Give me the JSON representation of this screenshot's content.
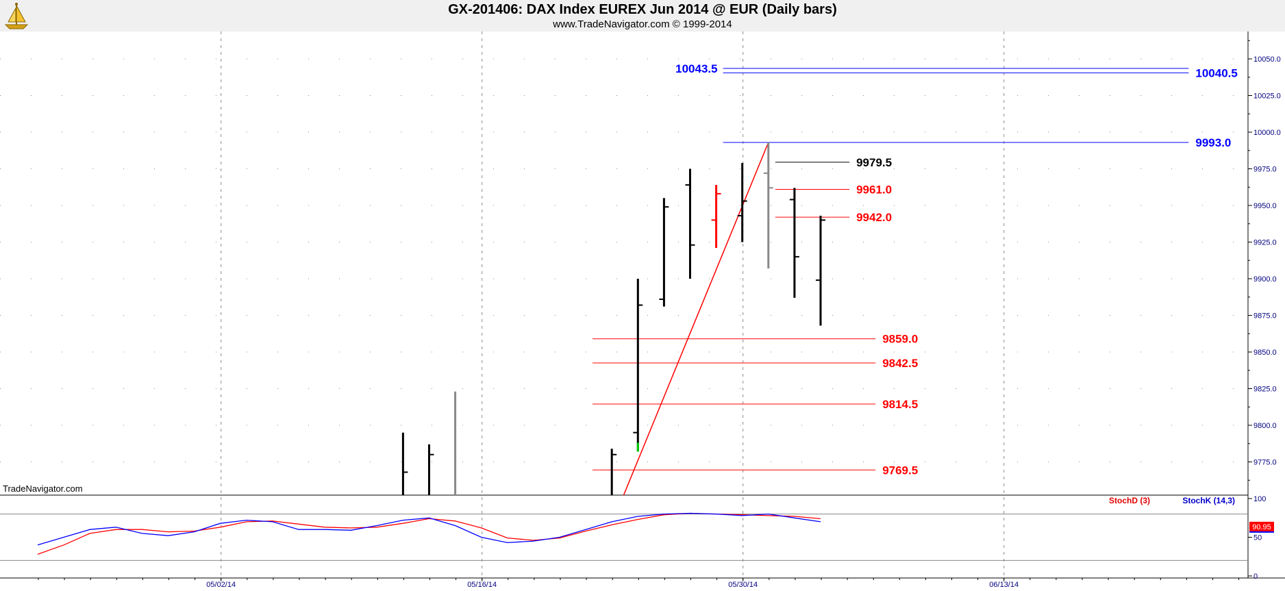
{
  "header": {
    "title": "GX-201406:  DAX Index EUREX Jun 2014 @ EUR  (Daily bars)",
    "subtitle": "www.TradeNavigator.com © 1999-2014"
  },
  "watermark": "TradeNavigator.com",
  "logo_icon": "ship-sextant-logo-icon",
  "colors": {
    "bar_normal": "#000000",
    "bar_gray": "#888888",
    "bar_red": "#ff0000",
    "bar_green": "#00cc00",
    "level_blue": "#0000ff",
    "level_red": "#ff0000",
    "level_black": "#000000",
    "stoch_d": "#ff0000",
    "stoch_k": "#0000ff",
    "axis_text_blue": "#000080",
    "grid": "#888888",
    "header_bg": "#f0f0f0"
  },
  "chart_data": {
    "type": "ohlc",
    "price_axis": {
      "ylim": [
        9750,
        10060
      ],
      "ticks": [
        "10050.0",
        "10025.0",
        "10000.0",
        "9975.0",
        "9950.0",
        "9925.0",
        "9900.0",
        "9875.0",
        "9850.0",
        "9825.0",
        "9800.0",
        "9775.0"
      ],
      "tick_values": [
        10050,
        10025,
        10000,
        9975,
        9950,
        9925,
        9900,
        9875,
        9850,
        9825,
        9800,
        9775
      ]
    },
    "date_axis": {
      "labels": [
        "05/02/14",
        "05/16/14",
        "05/30/14",
        "06/13/14"
      ],
      "label_bar_index": [
        7,
        17,
        27,
        37
      ],
      "bar_count_visible": 47
    },
    "bars": [
      {
        "i": 14,
        "high": 9795,
        "low": 9750,
        "open": 9750,
        "close": 9768,
        "color": "bar_normal"
      },
      {
        "i": 15,
        "high": 9787,
        "low": 9750,
        "open": 9750,
        "close": 9780,
        "color": "bar_normal"
      },
      {
        "i": 16,
        "high": 9823,
        "low": 9750,
        "open": 9750,
        "close": 9750,
        "color": "bar_gray"
      },
      {
        "i": 22,
        "high": 9784,
        "low": 9750,
        "open": 9750,
        "close": 9780,
        "color": "bar_normal"
      },
      {
        "i": 23,
        "high": 9900,
        "low": 9782,
        "open": 9795,
        "close": 9882,
        "color": "bar_normal",
        "green_mark": [
          9782,
          9788
        ]
      },
      {
        "i": 24,
        "high": 9955,
        "low": 9881,
        "open": 9886,
        "close": 9949,
        "color": "bar_normal"
      },
      {
        "i": 25,
        "high": 9975,
        "low": 9900,
        "open": 9964,
        "close": 9923,
        "color": "bar_normal"
      },
      {
        "i": 26,
        "high": 9964,
        "low": 9921,
        "open": 9940,
        "close": 9958,
        "color": "bar_red"
      },
      {
        "i": 27,
        "high": 9979,
        "low": 9925,
        "open": 9943,
        "close": 9953,
        "color": "bar_normal"
      },
      {
        "i": 28,
        "high": 9993,
        "low": 9907,
        "open": 9972,
        "close": 9962,
        "color": "bar_gray"
      },
      {
        "i": 29,
        "high": 9962,
        "low": 9887,
        "open": 9954,
        "close": 9915,
        "color": "bar_normal"
      },
      {
        "i": 30,
        "high": 9943,
        "low": 9868,
        "open": 9899,
        "close": 9940,
        "color": "bar_normal"
      }
    ],
    "trendline": {
      "from": {
        "i": 22.4,
        "price": 9750
      },
      "to": {
        "i": 28,
        "price": 9993
      },
      "color": "bar_red"
    },
    "levels": [
      {
        "value": 10043.5,
        "label": "10043.5",
        "from_i": 26,
        "to_i": 44,
        "color": "level_blue",
        "label_side": "left"
      },
      {
        "value": 10040.5,
        "label": "10040.5",
        "from_i": 26,
        "to_i": 44,
        "color": "level_blue",
        "label_side": "right"
      },
      {
        "value": 9993.0,
        "label": "9993.0",
        "from_i": 26,
        "to_i": 44,
        "color": "level_blue",
        "label_side": "right"
      },
      {
        "value": 9979.5,
        "label": "9979.5",
        "from_i": 28,
        "to_i": 31,
        "color": "level_black",
        "label_side": "right"
      },
      {
        "value": 9961.0,
        "label": "9961.0",
        "from_i": 28,
        "to_i": 31,
        "color": "level_red",
        "label_side": "right"
      },
      {
        "value": 9942.0,
        "label": "9942.0",
        "from_i": 28,
        "to_i": 31,
        "color": "level_red",
        "label_side": "right"
      },
      {
        "value": 9859.0,
        "label": "9859.0",
        "from_i": 21,
        "to_i": 32,
        "color": "level_red",
        "label_side": "right"
      },
      {
        "value": 9842.5,
        "label": "9842.5",
        "from_i": 21,
        "to_i": 32,
        "color": "level_red",
        "label_side": "right"
      },
      {
        "value": 9814.5,
        "label": "9814.5",
        "from_i": 21,
        "to_i": 32,
        "color": "level_red",
        "label_side": "right"
      },
      {
        "value": 9769.5,
        "label": "9769.5",
        "from_i": 21,
        "to_i": 32,
        "color": "level_red",
        "label_side": "right"
      }
    ],
    "stochastic": {
      "legend": {
        "d": "StochD (3)",
        "k": "StochK (14,3)"
      },
      "ylim": [
        0,
        100
      ],
      "ticks": [
        "100",
        "50",
        "0"
      ],
      "tick_values": [
        100,
        50,
        0
      ],
      "ref_lines": [
        80,
        20
      ],
      "last_value_label": "90.95",
      "k_values": [
        [
          0,
          40
        ],
        [
          2,
          60
        ],
        [
          3,
          63
        ],
        [
          4,
          55
        ],
        [
          5,
          52
        ],
        [
          6,
          57
        ],
        [
          7,
          68
        ],
        [
          8,
          72
        ],
        [
          9,
          70
        ],
        [
          10,
          60
        ],
        [
          11,
          60
        ],
        [
          12,
          59
        ],
        [
          13,
          65
        ],
        [
          14,
          72
        ],
        [
          15,
          75
        ],
        [
          16,
          65
        ],
        [
          17,
          50
        ],
        [
          18,
          43
        ],
        [
          19,
          45
        ],
        [
          20,
          50
        ],
        [
          21,
          60
        ],
        [
          22,
          70
        ],
        [
          23,
          77
        ],
        [
          24,
          80
        ],
        [
          25,
          81
        ],
        [
          26,
          80
        ],
        [
          27,
          78
        ],
        [
          28,
          80
        ],
        [
          29,
          75
        ],
        [
          30,
          70
        ]
      ],
      "d_values": [
        [
          0,
          28
        ],
        [
          1,
          40
        ],
        [
          2,
          55
        ],
        [
          3,
          60
        ],
        [
          4,
          60
        ],
        [
          5,
          57
        ],
        [
          6,
          58
        ],
        [
          7,
          63
        ],
        [
          8,
          70
        ],
        [
          9,
          71
        ],
        [
          10,
          67
        ],
        [
          11,
          63
        ],
        [
          12,
          62
        ],
        [
          13,
          63
        ],
        [
          14,
          68
        ],
        [
          15,
          74
        ],
        [
          16,
          71
        ],
        [
          17,
          62
        ],
        [
          18,
          49
        ],
        [
          19,
          46
        ],
        [
          20,
          49
        ],
        [
          21,
          58
        ],
        [
          22,
          66
        ],
        [
          23,
          73
        ],
        [
          24,
          79
        ],
        [
          25,
          81
        ],
        [
          26,
          80
        ],
        [
          27,
          79
        ],
        [
          28,
          78
        ],
        [
          29,
          77
        ],
        [
          30,
          74
        ]
      ]
    }
  }
}
